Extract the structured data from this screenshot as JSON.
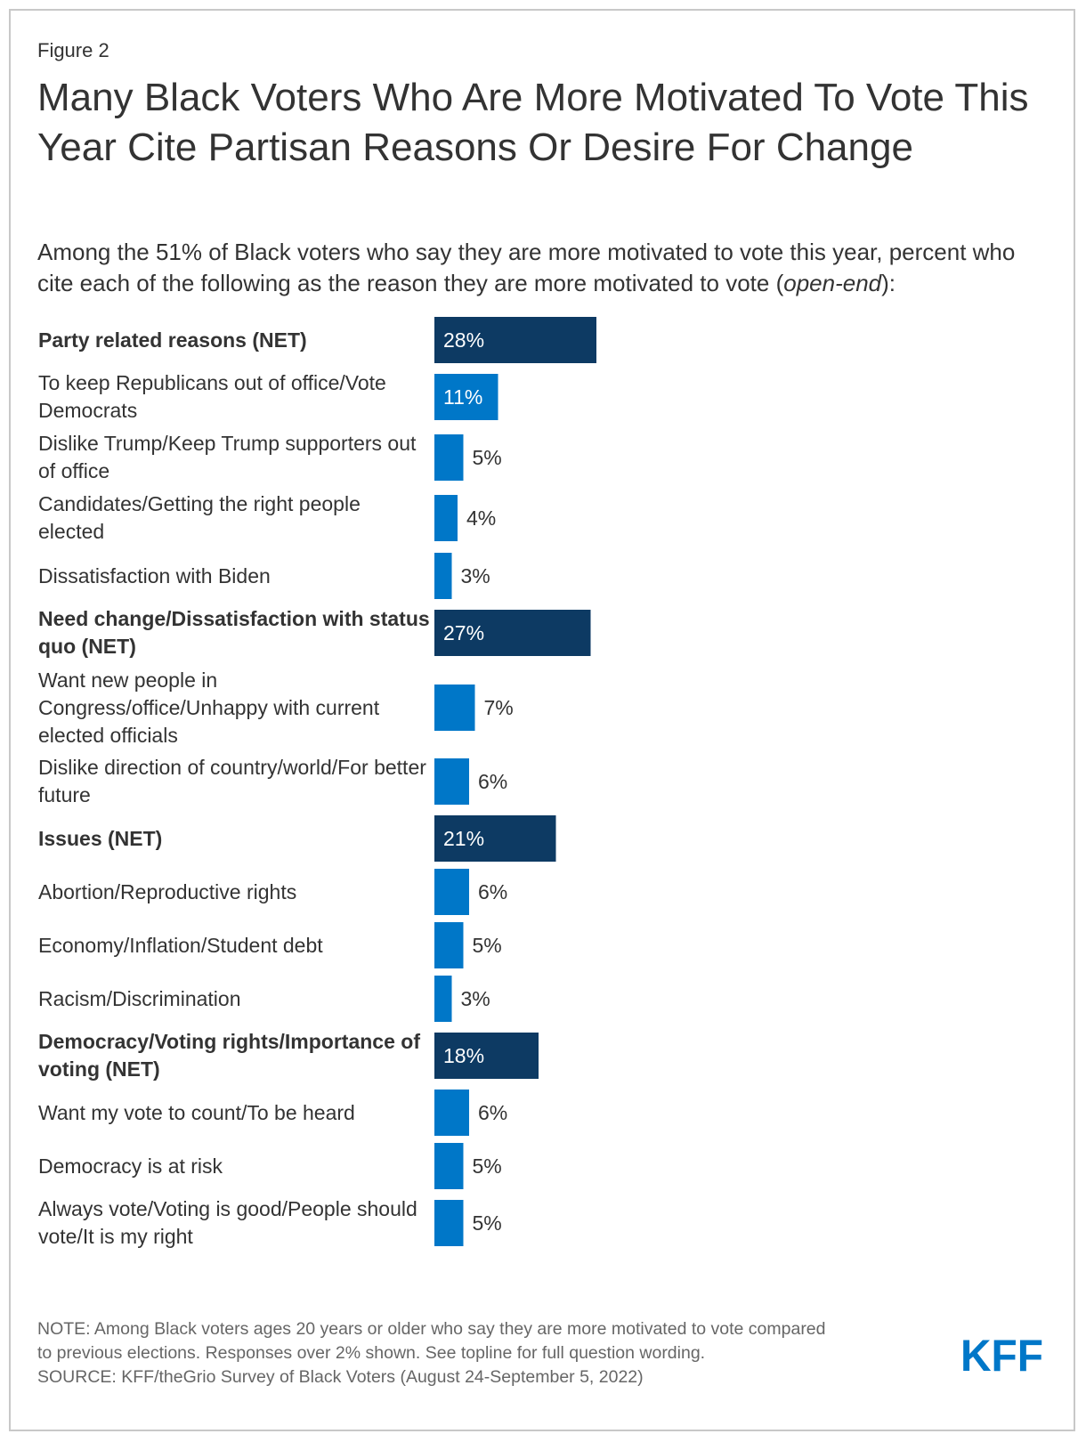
{
  "figure_label": "Figure 2",
  "title": "Many Black Voters Who Are More Motivated To Vote This Year Cite Partisan Reasons Or Desire For Change",
  "subtitle_main": "Among the 51% of Black voters who say they are more motivated to vote this year, percent who cite each of the following as the reason they are more motivated to vote (",
  "subtitle_italic": "open-end",
  "subtitle_end": "):",
  "note_line1": "NOTE: Among Black voters ages 20 years or older who say they are more motivated to vote compared",
  "note_line2": "to previous elections. Responses over 2% shown. See topline for full question wording.",
  "source": "SOURCE: KFF/theGrio Survey of Black Voters (August 24-September 5, 2022)",
  "logo_text": "KFF",
  "colors": {
    "net_bar": "#0d3a63",
    "sub_bar": "#0077c8",
    "text": "#333333",
    "note": "#666666",
    "border": "#c8c8c8"
  },
  "chart_data": {
    "type": "bar",
    "orientation": "horizontal",
    "unit": "%",
    "categories": [
      "Party related reasons (NET)",
      "To keep Republicans out of office/Vote Democrats",
      "Dislike Trump/Keep Trump supporters out of office",
      "Candidates/Getting the right people elected",
      "Dissatisfaction with Biden",
      "Need change/Dissatisfaction with status quo (NET)",
      "Want new people in Congress/office/Unhappy with current elected officials",
      "Dislike direction of country/world/For better future",
      "Issues (NET)",
      "Abortion/Reproductive rights",
      "Economy/Inflation/Student debt",
      "Racism/Discrimination",
      "Democracy/Voting rights/Importance of voting (NET)",
      "Want my vote to count/To be heard",
      "Democracy is at risk",
      "Always vote/Voting is good/People should vote/It is my right"
    ],
    "values": [
      28,
      11,
      5,
      4,
      3,
      27,
      7,
      6,
      21,
      6,
      5,
      3,
      18,
      6,
      5,
      5
    ],
    "labels": [
      "28%",
      "11%",
      "5%",
      "4%",
      "3%",
      "27%",
      "7%",
      "6%",
      "21%",
      "6%",
      "5%",
      "3%",
      "18%",
      "6%",
      "5%",
      "5%"
    ],
    "is_net": [
      true,
      false,
      false,
      false,
      false,
      true,
      false,
      false,
      true,
      false,
      false,
      false,
      true,
      false,
      false,
      false
    ],
    "xlim": [
      0,
      30
    ],
    "legend": "none",
    "grid": false
  }
}
